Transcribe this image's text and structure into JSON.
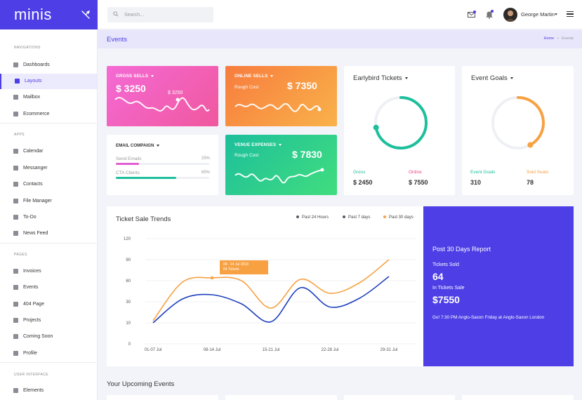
{
  "brand": {
    "logo": "minis"
  },
  "search": {
    "placeholder": "Search..."
  },
  "user": {
    "name": "George Martin"
  },
  "sidebar": {
    "sections": [
      {
        "title": "NAVIGATIONS",
        "items": [
          {
            "label": "Dashboards",
            "icon": "dashboard-icon"
          },
          {
            "label": "Layouts",
            "icon": "layout-icon",
            "active": true
          },
          {
            "label": "Mailbox",
            "icon": "mail-icon"
          },
          {
            "label": "Ecommerce",
            "icon": "cart-icon"
          }
        ]
      },
      {
        "title": "APPS",
        "items": [
          {
            "label": "Calendar",
            "icon": "calendar-icon"
          },
          {
            "label": "Messanger",
            "icon": "chat-icon"
          },
          {
            "label": "Contacts",
            "icon": "contacts-icon"
          },
          {
            "label": "File Manager",
            "icon": "folder-icon"
          },
          {
            "label": "To-Do",
            "icon": "todo-icon"
          },
          {
            "label": "News Feed",
            "icon": "news-icon"
          }
        ]
      },
      {
        "title": "PAGES",
        "items": [
          {
            "label": "Invoices",
            "icon": "invoice-icon"
          },
          {
            "label": "Events",
            "icon": "events-icon"
          },
          {
            "label": "404 Page",
            "icon": "error-page-icon"
          },
          {
            "label": "Projects",
            "icon": "projects-icon"
          },
          {
            "label": "Coming Soon",
            "icon": "clock-icon"
          },
          {
            "label": "Profile",
            "icon": "profile-icon"
          }
        ]
      },
      {
        "title": "USER INTERFACE",
        "items": [
          {
            "label": "Elements",
            "icon": "elements-icon"
          }
        ]
      }
    ]
  },
  "page": {
    "title": "Events",
    "breadcrumb": {
      "home": "Home",
      "separator": "•",
      "current": "Events"
    }
  },
  "cards": {
    "gross_sells": {
      "title": "GROSS SELLS",
      "value": "$ 3250",
      "marker": "$ 3250",
      "colors": [
        "#f46ad5",
        "#f0589e"
      ]
    },
    "online_sells": {
      "title": "ONLINE SELLS",
      "sub": "Rough Cost",
      "value": "$ 7350",
      "colors": [
        "#f77c3e",
        "#f9b24a"
      ]
    },
    "venue_expenses": {
      "title": "VENUE EXPENSES",
      "sub": "Rough Cost",
      "value": "$ 7830",
      "colors": [
        "#1dbf9c",
        "#41dd7e"
      ]
    },
    "email_compaign": {
      "title": "EMAIL COMPAIGN",
      "rows": [
        {
          "label": "Send Emails",
          "pct": "25%",
          "value": 0.25,
          "color": "#e15ed2"
        },
        {
          "label": "CTA Clients",
          "pct": "65%",
          "value": 0.65,
          "color": "#1dbf9c"
        }
      ]
    },
    "earlybird": {
      "title": "Earlybird Tickets",
      "ring_value": 0.72,
      "ring_color": "#1dbf9c",
      "stats": [
        {
          "label": "Gress",
          "value": "$ 2450",
          "color": "#1dbf9c"
        },
        {
          "label": "Online",
          "value": "$ 7550",
          "color": "#f0458a"
        }
      ]
    },
    "event_goals": {
      "title": "Event Goals",
      "ring_value": 0.42,
      "ring_color": "#f7a142",
      "stats": [
        {
          "label": "Event Goals",
          "value": "310",
          "color": "#1dbf9c"
        },
        {
          "label": "Sold Seats",
          "value": "78",
          "color": "#f7a142"
        }
      ]
    }
  },
  "trend": {
    "title": "Ticket Sale Trends",
    "legend": [
      {
        "label": "Past 24 Hours",
        "color": "#555b66"
      },
      {
        "label": "Past 7 days",
        "color": "#555b66"
      },
      {
        "label": "Past 30 days",
        "color": "#f7a142"
      }
    ],
    "tooltip": {
      "line1": "08 - 14 Jul 2018",
      "line2": "64 Tickets"
    }
  },
  "chart_data": {
    "type": "line",
    "categories": [
      "01-07 Jul",
      "08-14 Jul",
      "15-21 Jul",
      "22-28 Jul",
      "29-31 Jul"
    ],
    "x": [
      0,
      0.5,
      1,
      1.5,
      2,
      2.5,
      3,
      3.5,
      4
    ],
    "yticks": [
      0,
      10,
      30,
      60,
      90,
      120
    ],
    "ylim": [
      0,
      120
    ],
    "grid": true,
    "series": [
      {
        "color": "#f7a142",
        "values": [
          12,
          58,
          64,
          60,
          24,
          62,
          42,
          57,
          90
        ]
      },
      {
        "color": "#1d3fbf",
        "values": [
          10,
          34,
          40,
          28,
          11,
          50,
          25,
          35,
          66
        ]
      }
    ]
  },
  "report": {
    "heading": "Post 30 Days Report",
    "sold_label": "Tickets Sold",
    "sold_value": "64",
    "sale_label": "In Tickets Sale",
    "sale_value": "$7550",
    "desc": "Go! 7:30 PM Anglo-Saxon Friday at Anglo-Saxon London"
  },
  "upcoming": {
    "title": "Your Upcoming Events"
  }
}
